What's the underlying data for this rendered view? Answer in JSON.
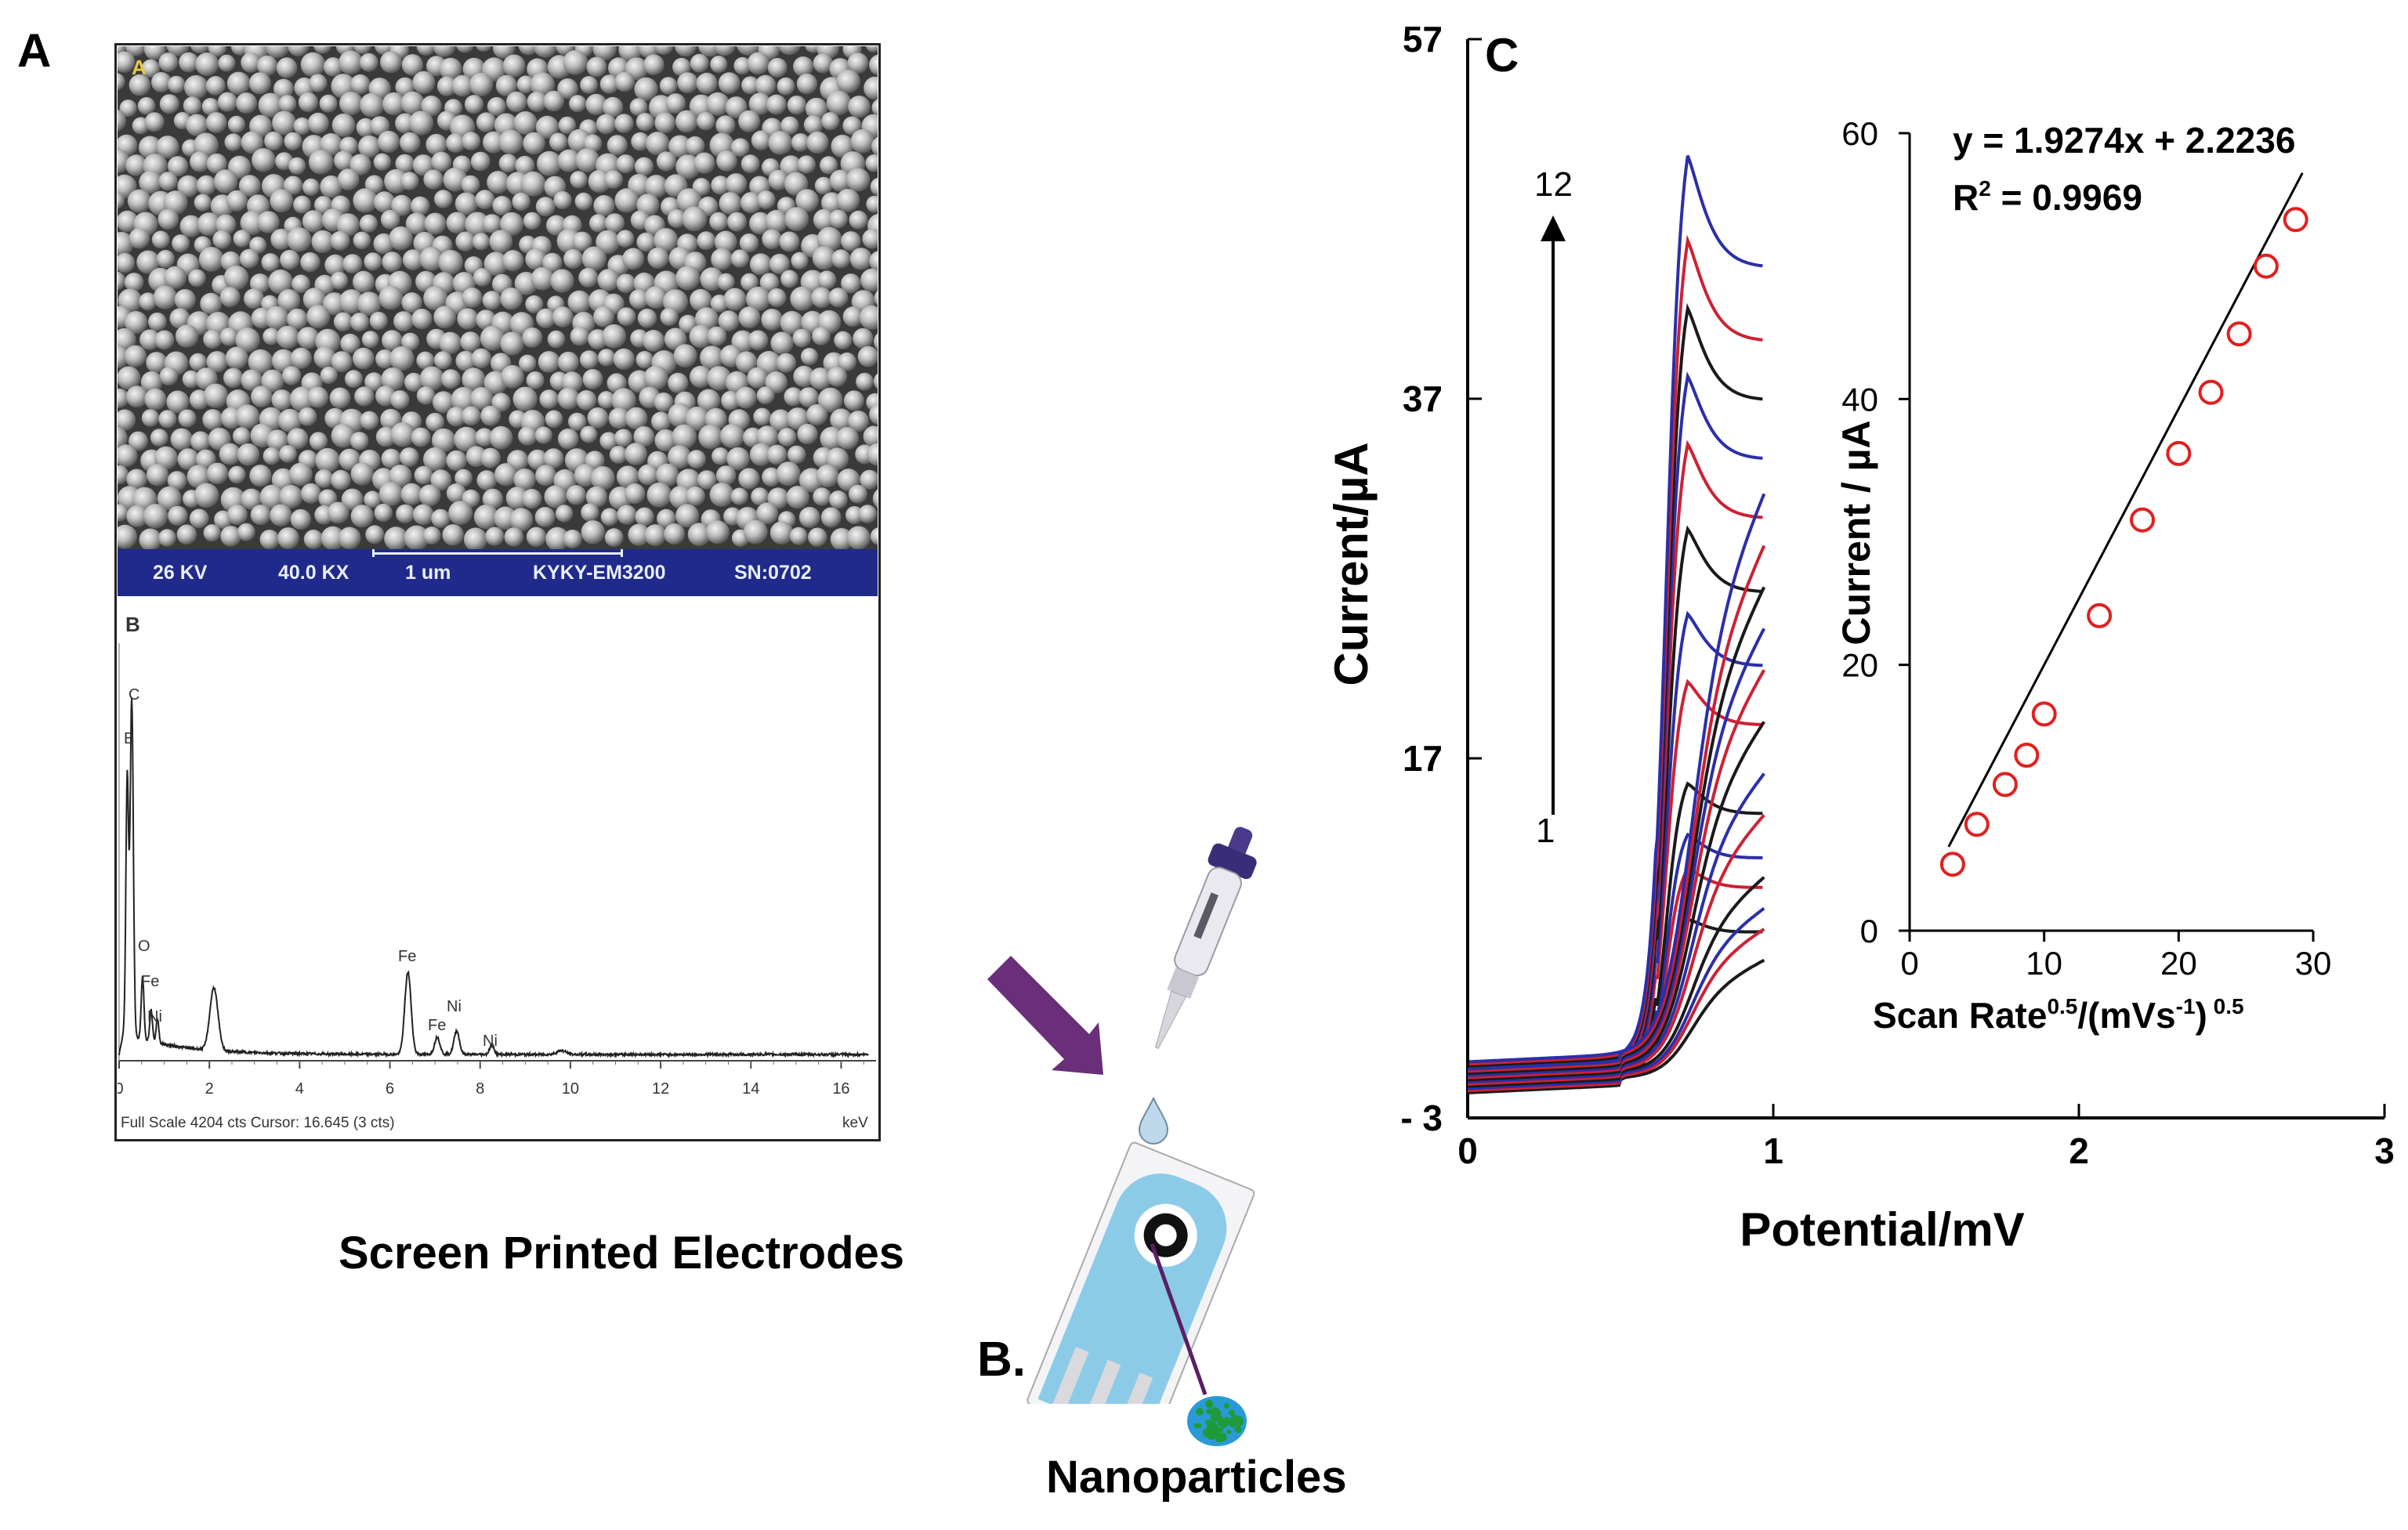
{
  "panels": {
    "a": {
      "letter": "A"
    },
    "b": {
      "letter": "B."
    },
    "c": {
      "letter": "C"
    }
  },
  "sem": {
    "label": "A",
    "bar": {
      "voltage": "26 KV",
      "magnification": "40.0 KX",
      "scale": "1 um",
      "instrument": "KYKY-EM3200",
      "serial": "SN:0702"
    }
  },
  "eds": {
    "label": "B",
    "footer": "Full Scale 4204 cts Cursor: 16.645  (3 cts)",
    "unit": "keV",
    "x_ticks": [
      "0",
      "2",
      "4",
      "6",
      "8",
      "10",
      "12",
      "14",
      "16"
    ],
    "peak_labels": [
      "C",
      "B",
      "O",
      "Fe",
      "Ni",
      "Fe",
      "Fe",
      "Ni",
      "Ni"
    ]
  },
  "schematic": {
    "electrode_label": "Screen Printed Electrodes",
    "nanoparticle_label": "Nanoparticles",
    "colors": {
      "pipette_accent": "#4a3a8c",
      "arrow": "#6a2e7a",
      "electrode": "#8ccbe8",
      "nanoparticle": "#1f9a3a"
    }
  },
  "chart_data": [
    {
      "type": "line",
      "title": "",
      "xlabel": "Potential/mV",
      "ylabel": "Current/µA",
      "xlim": [
        0,
        3
      ],
      "ylim": [
        -3,
        57
      ],
      "x_ticks": [
        "0",
        "1",
        "2",
        "3"
      ],
      "y_ticks": [
        "- 3",
        "17",
        "37",
        "57"
      ],
      "annotation": {
        "start": "1",
        "end": "12"
      },
      "series_colors": [
        "#1a1a1a",
        "#cc2233",
        "#2b2fa8"
      ],
      "peak_currents": [
        8,
        11,
        13,
        16,
        22,
        26,
        31,
        36,
        40,
        44,
        48,
        53
      ]
    },
    {
      "type": "scatter",
      "title": "",
      "xlabel": "Scan Rate",
      "xlabel_sup1": "0.5",
      "xlabel_mid": "/(mVs",
      "xlabel_sup2": "-1",
      "xlabel_end": ")",
      "xlabel_sup3": " 0.5",
      "ylabel": "Current / µA",
      "xlim": [
        0,
        30
      ],
      "ylim": [
        0,
        60
      ],
      "x_ticks": [
        "0",
        "10",
        "20",
        "30"
      ],
      "y_ticks": [
        "0",
        "20",
        "40",
        "60"
      ],
      "equation": "y = 1.9274x + 2.2236",
      "r2_label": "R",
      "r2_sup": "2",
      "r2_value": " = 0.9969",
      "fit": {
        "slope": 1.9274,
        "intercept": 2.2236
      },
      "points": [
        {
          "x": 3.2,
          "y": 5.0
        },
        {
          "x": 5.0,
          "y": 8.0
        },
        {
          "x": 7.1,
          "y": 11.0
        },
        {
          "x": 8.7,
          "y": 13.2
        },
        {
          "x": 10.0,
          "y": 16.3
        },
        {
          "x": 14.1,
          "y": 23.7
        },
        {
          "x": 17.3,
          "y": 30.9
        },
        {
          "x": 20.0,
          "y": 35.9
        },
        {
          "x": 22.4,
          "y": 40.5
        },
        {
          "x": 24.5,
          "y": 44.9
        },
        {
          "x": 26.5,
          "y": 50.0
        },
        {
          "x": 28.7,
          "y": 53.5
        }
      ],
      "marker_color": "#e02020"
    }
  ]
}
